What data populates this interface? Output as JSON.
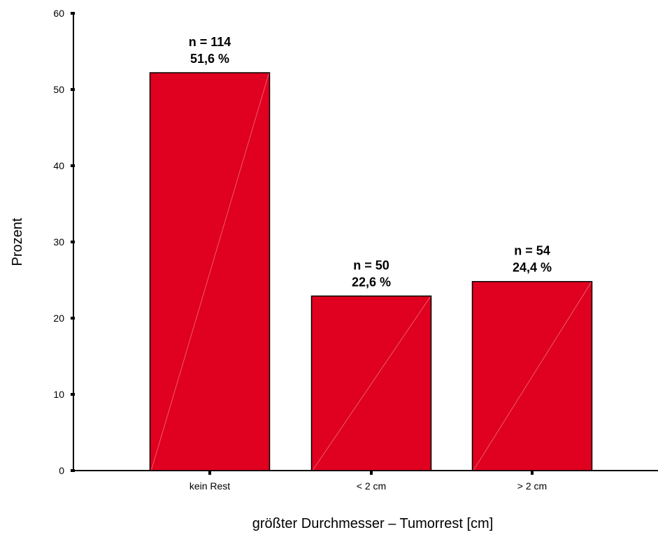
{
  "chart_data": {
    "type": "bar",
    "categories": [
      "kein Rest",
      "< 2 cm",
      "> 2 cm"
    ],
    "values": [
      52.2,
      22.9,
      24.8
    ],
    "bar_labels": [
      {
        "n": "n = 114",
        "pct": "51,6 %"
      },
      {
        "n": "n = 50",
        "pct": "22,6 %"
      },
      {
        "n": "n = 54",
        "pct": "24,4 %"
      }
    ],
    "xlabel": "größter Durchmesser – Tumorrest [cm]",
    "ylabel": "Prozent",
    "ylim": [
      0,
      60
    ],
    "yticks": [
      0,
      10,
      20,
      30,
      40,
      50,
      60
    ],
    "bar_color": "#e0001f",
    "edge_color": "#000000",
    "grid": false
  }
}
